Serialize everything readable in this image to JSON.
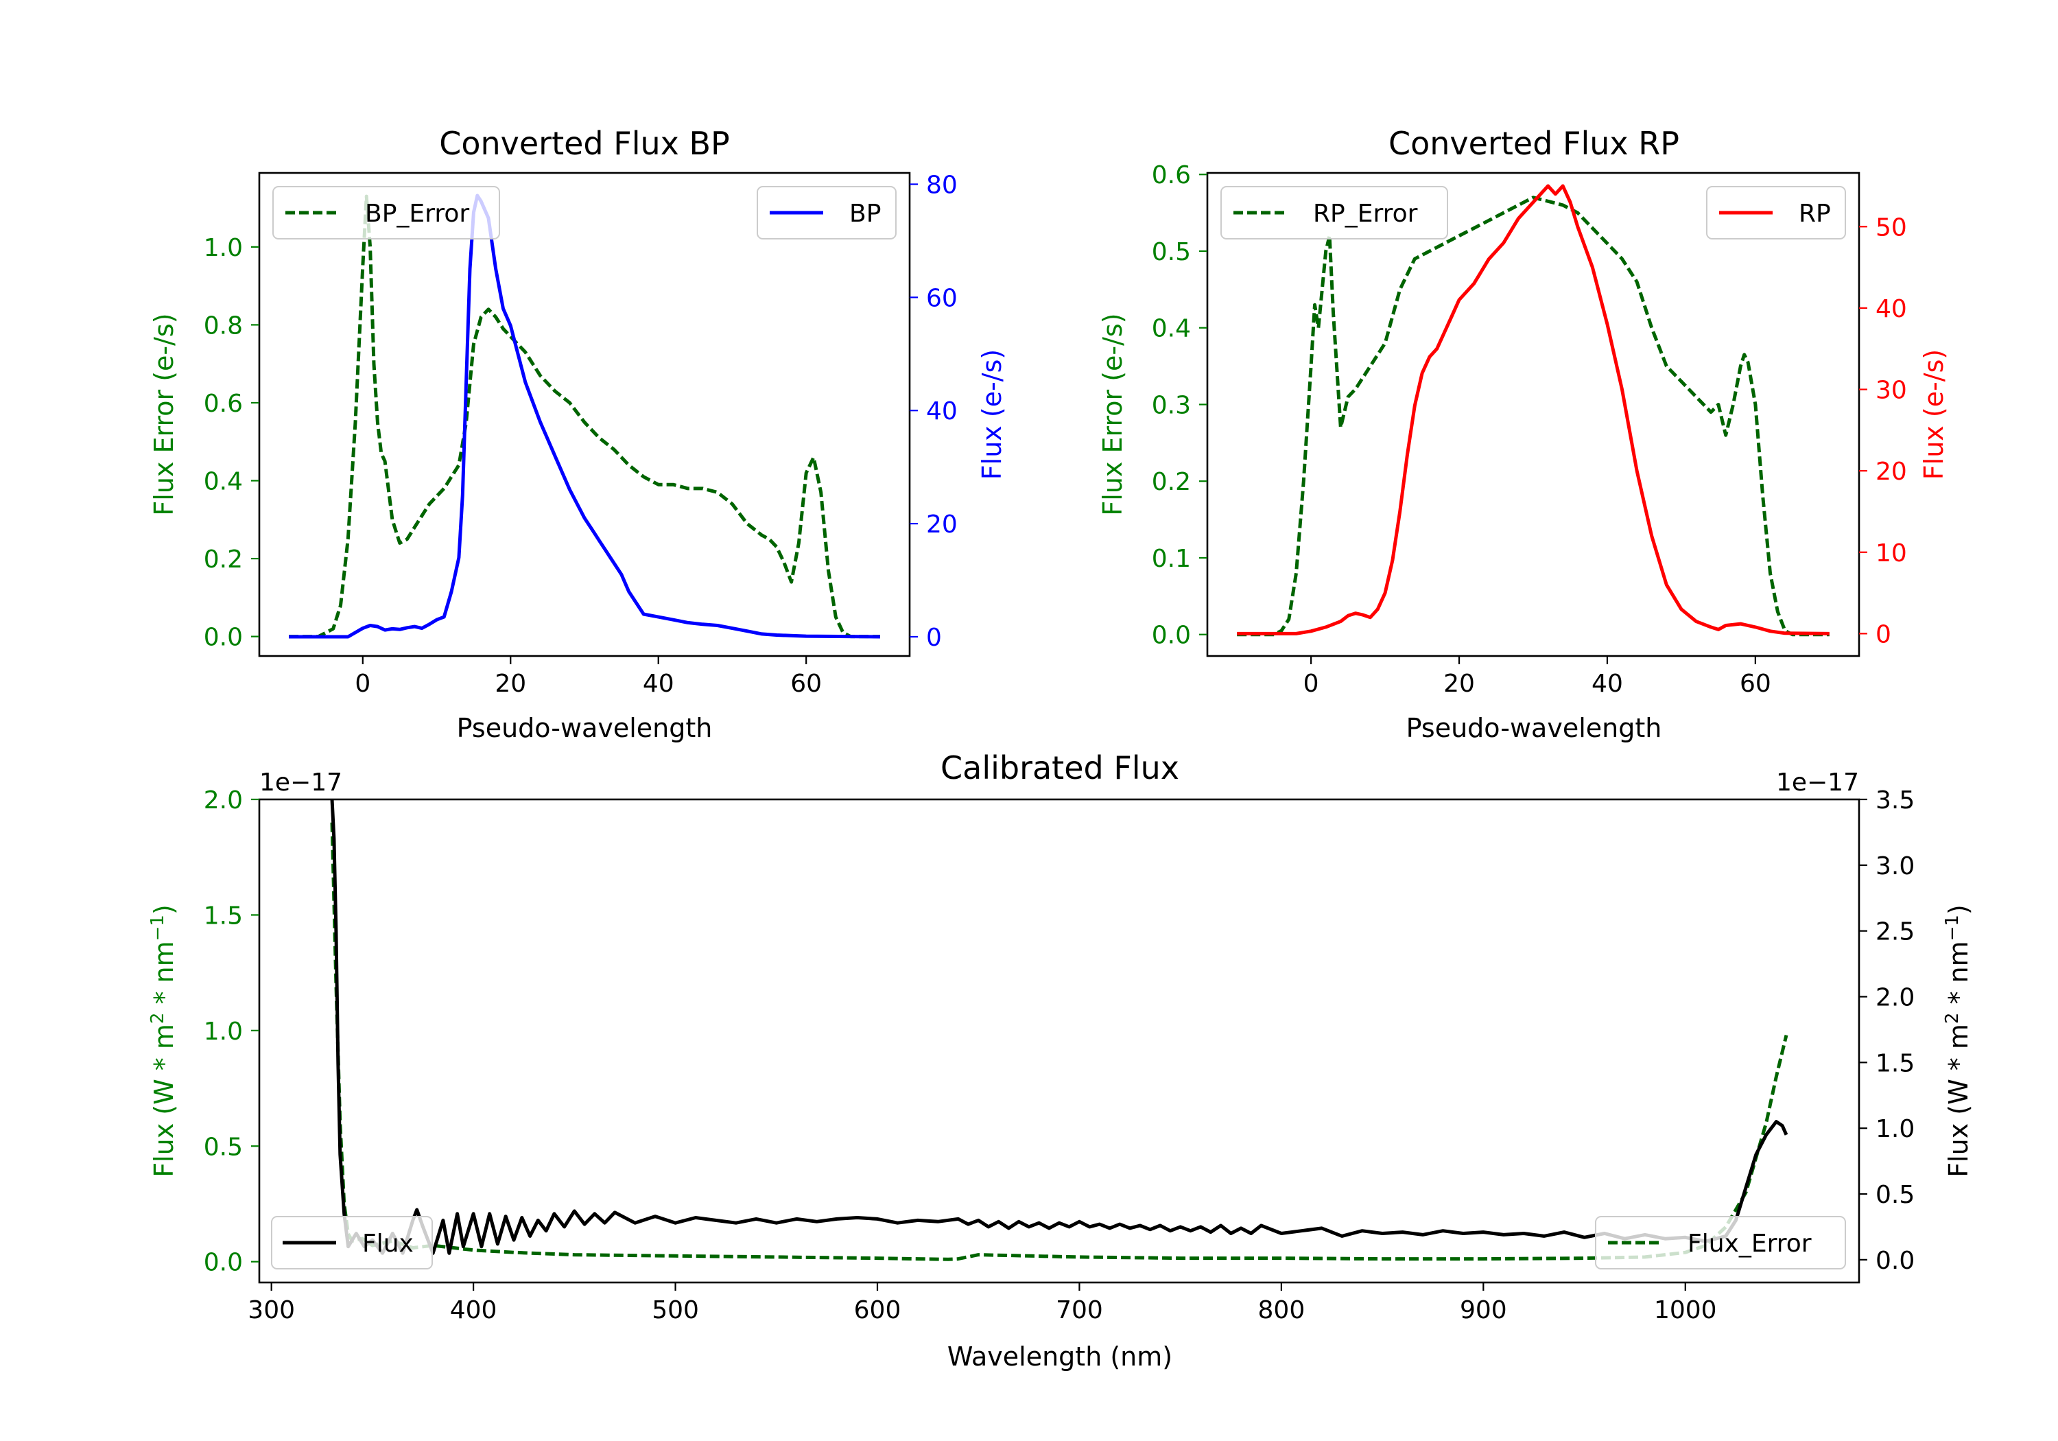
{
  "colors": {
    "error": "#006400",
    "bp": "#0000ff",
    "rp": "#ff0000",
    "flux": "#000000"
  },
  "chart_data": [
    {
      "type": "line",
      "title": "Converted Flux BP",
      "xlabel": "Pseudo-wavelength",
      "ylabel_left": "Flux Error (e-/s)",
      "ylabel_right": "Flux (e-/s)",
      "xlim": [
        -14,
        74
      ],
      "ylim_left": [
        -0.05,
        1.19
      ],
      "ylim_right": [
        -3.4,
        82
      ],
      "xticks": [
        0,
        20,
        40,
        60
      ],
      "yticks_left": [
        0.0,
        0.2,
        0.4,
        0.6,
        0.8,
        1.0
      ],
      "yticks_right": [
        0,
        20,
        40,
        60,
        80
      ],
      "series": [
        {
          "name": "BP_Error",
          "axis": "left",
          "style": "dashed",
          "color": "#006400",
          "x": [
            -10,
            -6,
            -4,
            -3,
            -2,
            -1,
            0,
            0.5,
            1,
            1.5,
            2,
            2.5,
            3,
            4,
            5,
            6,
            7,
            8,
            9,
            10,
            11,
            12,
            13,
            14,
            15,
            16,
            17,
            18,
            19,
            20,
            22,
            24,
            26,
            28,
            30,
            32,
            34,
            36,
            38,
            40,
            42,
            44,
            46,
            48,
            50,
            52,
            54,
            55,
            56,
            57,
            58,
            59,
            60,
            61,
            62,
            63,
            64,
            65,
            66,
            70
          ],
          "y": [
            0.0,
            0.0,
            0.02,
            0.08,
            0.25,
            0.55,
            0.95,
            1.13,
            1.0,
            0.7,
            0.55,
            0.47,
            0.45,
            0.3,
            0.24,
            0.25,
            0.28,
            0.31,
            0.34,
            0.36,
            0.38,
            0.41,
            0.44,
            0.55,
            0.75,
            0.82,
            0.84,
            0.82,
            0.79,
            0.77,
            0.73,
            0.67,
            0.63,
            0.6,
            0.55,
            0.51,
            0.48,
            0.44,
            0.41,
            0.39,
            0.39,
            0.38,
            0.38,
            0.37,
            0.34,
            0.29,
            0.26,
            0.25,
            0.23,
            0.19,
            0.14,
            0.24,
            0.42,
            0.46,
            0.37,
            0.17,
            0.05,
            0.01,
            0.0,
            0.0
          ]
        },
        {
          "name": "BP",
          "axis": "right",
          "style": "solid",
          "color": "#0000ff",
          "x": [
            -10,
            -2,
            0,
            1,
            2,
            3,
            4,
            5,
            6,
            7,
            8,
            9,
            10,
            11,
            12,
            13,
            13.5,
            14,
            14.5,
            15,
            15.5,
            16,
            17,
            18,
            19,
            20,
            21,
            22,
            24,
            26,
            28,
            30,
            31,
            32,
            33,
            34,
            35,
            36,
            37,
            38,
            40,
            42,
            44,
            46,
            48,
            50,
            52,
            54,
            56,
            60,
            70
          ],
          "y": [
            0,
            0,
            1.5,
            2.0,
            1.8,
            1.2,
            1.4,
            1.3,
            1.6,
            1.8,
            1.5,
            2.2,
            3.0,
            3.5,
            8,
            14,
            25,
            45,
            65,
            75,
            78,
            77,
            74,
            65,
            58,
            55,
            50,
            45,
            38,
            32,
            26,
            21,
            19,
            17,
            15,
            13,
            11,
            8,
            6,
            4,
            3.5,
            3.0,
            2.5,
            2.2,
            2.0,
            1.5,
            1.0,
            0.5,
            0.3,
            0.1,
            0
          ]
        }
      ]
    },
    {
      "type": "line",
      "title": "Converted Flux RP",
      "xlabel": "Pseudo-wavelength",
      "ylabel_left": "Flux Error (e-/s)",
      "ylabel_right": "Flux (e-/s)",
      "xlim": [
        -14,
        74
      ],
      "ylim_left": [
        -0.028,
        0.602
      ],
      "ylim_right": [
        -2.75,
        56.6
      ],
      "xticks": [
        0,
        20,
        40,
        60
      ],
      "yticks_left": [
        0.0,
        0.1,
        0.2,
        0.3,
        0.4,
        0.5,
        0.6
      ],
      "yticks_right": [
        0,
        10,
        20,
        30,
        40,
        50
      ],
      "series": [
        {
          "name": "RP_Error",
          "axis": "left",
          "style": "dashed",
          "color": "#006400",
          "x": [
            -10,
            -5,
            -4,
            -3,
            -2,
            -1,
            0,
            0.5,
            1,
            1.5,
            2,
            2.5,
            3,
            4,
            5,
            6,
            8,
            10,
            12,
            14,
            16,
            18,
            20,
            22,
            24,
            26,
            28,
            30,
            32,
            34,
            36,
            38,
            40,
            42,
            44,
            46,
            48,
            50,
            52,
            54,
            55,
            56,
            57,
            58,
            58.5,
            59,
            60,
            61,
            62,
            63,
            64,
            65,
            70
          ],
          "y": [
            0.0,
            0.0,
            0.005,
            0.02,
            0.08,
            0.2,
            0.35,
            0.43,
            0.4,
            0.45,
            0.5,
            0.52,
            0.42,
            0.27,
            0.31,
            0.32,
            0.35,
            0.38,
            0.45,
            0.49,
            0.5,
            0.51,
            0.52,
            0.53,
            0.54,
            0.55,
            0.56,
            0.57,
            0.565,
            0.56,
            0.55,
            0.53,
            0.51,
            0.49,
            0.46,
            0.4,
            0.35,
            0.33,
            0.31,
            0.29,
            0.3,
            0.26,
            0.3,
            0.35,
            0.365,
            0.355,
            0.3,
            0.18,
            0.08,
            0.03,
            0.005,
            0.0,
            0.0
          ]
        },
        {
          "name": "RP",
          "axis": "right",
          "style": "solid",
          "color": "#ff0000",
          "x": [
            -10,
            -2,
            0,
            2,
            4,
            5,
            6,
            7,
            8,
            9,
            10,
            11,
            12,
            13,
            14,
            15,
            16,
            17,
            18,
            19,
            20,
            22,
            24,
            26,
            28,
            29,
            30,
            31,
            32,
            33,
            34,
            35,
            36,
            38,
            40,
            42,
            44,
            46,
            48,
            50,
            52,
            54,
            55,
            56,
            58,
            60,
            62,
            64,
            70
          ],
          "y": [
            0,
            0,
            0.3,
            0.8,
            1.5,
            2.2,
            2.5,
            2.3,
            2.0,
            3.0,
            5.0,
            9.0,
            15,
            22,
            28,
            32,
            34,
            35,
            37,
            39,
            41,
            43,
            46,
            48,
            51,
            52,
            53,
            54,
            55,
            54,
            55,
            53,
            50,
            45,
            38,
            30,
            20,
            12,
            6,
            3,
            1.5,
            0.8,
            0.5,
            1.0,
            1.2,
            0.8,
            0.3,
            0.05,
            0
          ]
        }
      ]
    },
    {
      "type": "line",
      "title": "Calibrated Flux",
      "xlabel": "Wavelength (nm)",
      "ylabel_left": "Flux (W * m^2 * nm^-1)",
      "ylabel_right": "Flux (W * m^2 * nm^-1)",
      "offset_left": "1e−17",
      "offset_right": "1e−17",
      "xlim": [
        294,
        1086
      ],
      "ylim_left": [
        -0.09,
        2.0
      ],
      "ylim_right": [
        -0.1729,
        3.5
      ],
      "xticks": [
        300,
        400,
        500,
        600,
        700,
        800,
        900,
        1000
      ],
      "yticks_left": [
        0.0,
        0.5,
        1.0,
        1.5,
        2.0
      ],
      "yticks_right": [
        0.0,
        0.5,
        1.0,
        1.5,
        2.0,
        2.5,
        3.0,
        3.5
      ],
      "series": [
        {
          "name": "Flux_Error",
          "axis": "left",
          "style": "dashed",
          "color": "#006400",
          "x": [
            330,
            332,
            334,
            336,
            338,
            340,
            345,
            350,
            360,
            370,
            380,
            400,
            420,
            450,
            500,
            550,
            600,
            620,
            635,
            640,
            650,
            700,
            750,
            800,
            850,
            900,
            950,
            980,
            1000,
            1010,
            1020,
            1030,
            1035,
            1040,
            1045,
            1050
          ],
          "y": [
            1.9,
            1.2,
            0.6,
            0.25,
            0.12,
            0.09,
            0.1,
            0.07,
            0.09,
            0.06,
            0.07,
            0.05,
            0.04,
            0.03,
            0.025,
            0.02,
            0.015,
            0.012,
            0.01,
            0.012,
            0.03,
            0.02,
            0.015,
            0.015,
            0.012,
            0.012,
            0.015,
            0.02,
            0.04,
            0.07,
            0.15,
            0.3,
            0.45,
            0.6,
            0.8,
            0.98
          ]
        },
        {
          "name": "Flux",
          "axis": "right",
          "style": "solid",
          "color": "#000000",
          "x": [
            330,
            331,
            332,
            333,
            334,
            336,
            338,
            342,
            346,
            350,
            355,
            360,
            365,
            370,
            372,
            375,
            380,
            385,
            388,
            392,
            395,
            400,
            404,
            408,
            412,
            416,
            420,
            424,
            428,
            432,
            436,
            440,
            445,
            450,
            455,
            460,
            465,
            470,
            480,
            490,
            500,
            510,
            520,
            530,
            540,
            550,
            560,
            570,
            580,
            590,
            600,
            610,
            620,
            630,
            640,
            645,
            650,
            655,
            660,
            665,
            670,
            675,
            680,
            685,
            690,
            695,
            700,
            705,
            710,
            715,
            720,
            725,
            730,
            735,
            740,
            745,
            750,
            755,
            760,
            765,
            770,
            775,
            780,
            785,
            790,
            800,
            810,
            820,
            830,
            840,
            850,
            860,
            870,
            880,
            890,
            900,
            910,
            920,
            930,
            940,
            950,
            960,
            970,
            980,
            990,
            1000,
            1010,
            1020,
            1025,
            1030,
            1035,
            1040,
            1045,
            1048,
            1050
          ],
          "y": [
            3.5,
            3.2,
            2.5,
            1.5,
            0.8,
            0.35,
            0.1,
            0.2,
            0.1,
            0.15,
            0.05,
            0.2,
            0.05,
            0.3,
            0.38,
            0.25,
            0.05,
            0.3,
            0.05,
            0.35,
            0.1,
            0.35,
            0.1,
            0.35,
            0.12,
            0.33,
            0.15,
            0.32,
            0.18,
            0.3,
            0.22,
            0.35,
            0.25,
            0.37,
            0.27,
            0.35,
            0.28,
            0.36,
            0.28,
            0.33,
            0.28,
            0.32,
            0.3,
            0.28,
            0.31,
            0.28,
            0.31,
            0.29,
            0.31,
            0.32,
            0.31,
            0.28,
            0.3,
            0.29,
            0.31,
            0.27,
            0.3,
            0.25,
            0.29,
            0.24,
            0.29,
            0.25,
            0.28,
            0.24,
            0.28,
            0.25,
            0.29,
            0.25,
            0.27,
            0.24,
            0.27,
            0.24,
            0.26,
            0.23,
            0.26,
            0.22,
            0.25,
            0.22,
            0.25,
            0.21,
            0.26,
            0.2,
            0.24,
            0.2,
            0.26,
            0.2,
            0.22,
            0.24,
            0.18,
            0.22,
            0.2,
            0.21,
            0.19,
            0.22,
            0.2,
            0.21,
            0.19,
            0.2,
            0.18,
            0.21,
            0.17,
            0.2,
            0.16,
            0.19,
            0.16,
            0.17,
            0.14,
            0.18,
            0.3,
            0.55,
            0.8,
            0.95,
            1.05,
            1.02,
            0.95
          ]
        }
      ]
    }
  ]
}
